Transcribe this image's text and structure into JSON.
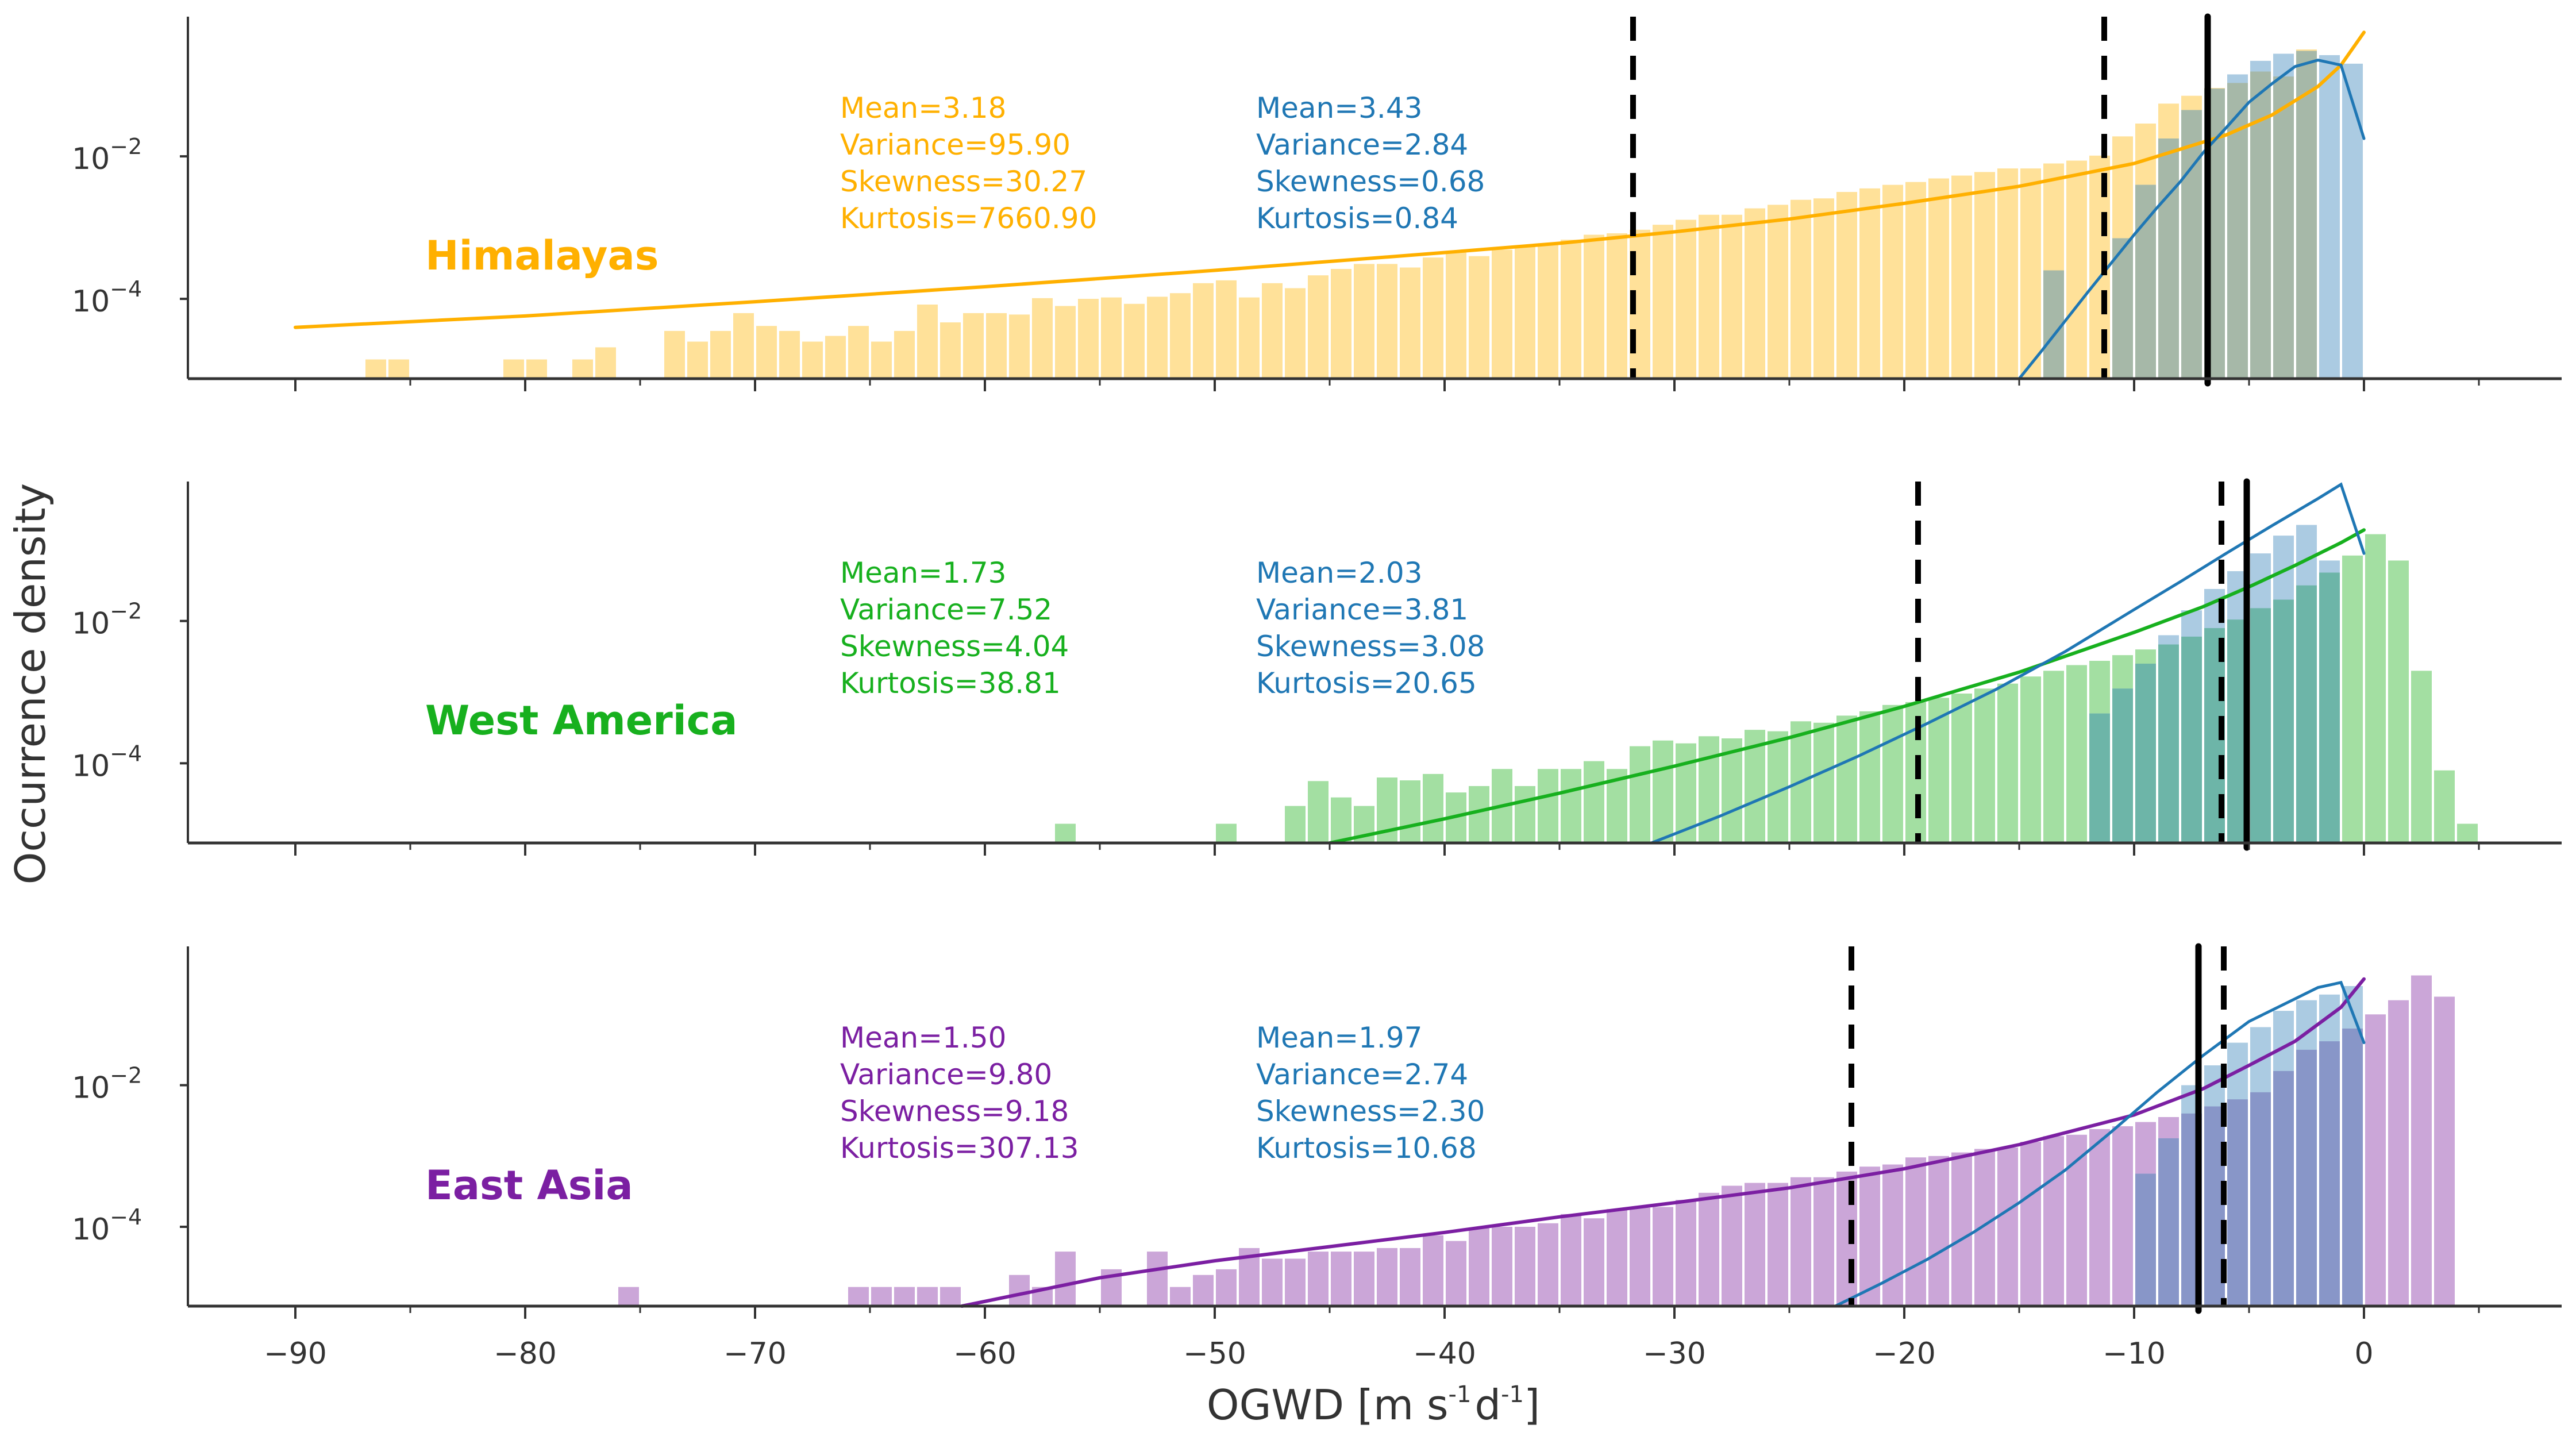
{
  "chart_data": {
    "type": "bar",
    "description": "Three stacked log-scale histograms of OGWD with fitted distribution curves",
    "xlabel": "OGWD [m s^-1 d^-1]",
    "xlabel_parts": {
      "main": "OGWD [m s",
      "sup1": "-1",
      "mid": "d",
      "sup2": "-1",
      "end": "]"
    },
    "ylabel": "Occurrence density",
    "xlim": [
      -94.7,
      8.7
    ],
    "ylim_log10": [
      -5.12,
      -0.04
    ],
    "yscale": "log",
    "x_ticks": [
      -90,
      -80,
      -70,
      -60,
      -50,
      -40,
      -30,
      -20,
      -10,
      0
    ],
    "x_tick_labels": [
      "−90",
      "−80",
      "−70",
      "−60",
      "−50",
      "−40",
      "−30",
      "−20",
      "−10",
      "0"
    ],
    "x_minor_ticks": [
      -85,
      -75,
      -65,
      -55,
      -45,
      -35,
      -25,
      -15,
      -5,
      5
    ],
    "y_ticks_log10": [
      -2,
      -4
    ],
    "y_tick_labels": [
      {
        "base": "10",
        "exp": "−2"
      },
      {
        "base": "10",
        "exp": "−4"
      }
    ],
    "bin_width": 1,
    "panels": [
      {
        "region": "Himalayas",
        "color": "#FFB000",
        "bar_color": "#FFE199",
        "blue_color": "#1F77B4",
        "blue_bar_color": "#A6C8E0",
        "overlap_color": "#A6B8A8",
        "stats_region": {
          "mean": "Mean=3.18",
          "variance": "Variance=95.90",
          "skewness": "Skewness=30.27",
          "kurtosis": "Kurtosis=7660.90"
        },
        "stats_blue": {
          "mean": "Mean=3.43",
          "variance": "Variance=2.84",
          "skewness": "Skewness=0.68",
          "kurtosis": "Kurtosis=0.84"
        },
        "dashed_lines": [
          -31.8,
          -11.3
        ],
        "solid_lines": [
          -6.8
        ],
        "region_bins_start": -87,
        "region_bins_log10": [
          -4.85,
          -4.85,
          null,
          null,
          null,
          null,
          -4.85,
          -4.85,
          null,
          -4.85,
          -4.68,
          null,
          null,
          -4.45,
          -4.6,
          -4.45,
          -4.2,
          -4.38,
          -4.45,
          -4.6,
          -4.52,
          -4.38,
          -4.6,
          -4.45,
          -4.08,
          -4.33,
          -4.2,
          -4.2,
          -4.22,
          -3.99,
          -4.1,
          -4.0,
          -3.98,
          -4.07,
          -3.97,
          -3.92,
          -3.78,
          -3.74,
          -3.98,
          -3.78,
          -3.85,
          -3.67,
          -3.58,
          -3.51,
          -3.51,
          -3.56,
          -3.42,
          -3.35,
          -3.4,
          -3.31,
          -3.26,
          -3.22,
          -3.17,
          -3.1,
          -3.08,
          -3.03,
          -2.96,
          -2.89,
          -2.82,
          -2.82,
          -2.73,
          -2.68,
          -2.61,
          -2.59,
          -2.5,
          -2.45,
          -2.4,
          -2.36,
          -2.31,
          -2.27,
          -2.22,
          -2.17,
          -2.17,
          -2.1,
          -2.06,
          -1.99,
          -1.72,
          -1.54,
          -1.26,
          -1.15,
          -1.04,
          -0.97,
          -0.81,
          -0.88,
          -0.5
        ],
        "blue_bins_start": -14,
        "blue_bins_log10": [
          -3.6,
          null,
          null,
          -3.15,
          -2.4,
          -1.75,
          -1.35,
          -1.05,
          -0.85,
          -0.66,
          -0.56,
          -0.52,
          -0.58,
          -0.7
        ],
        "region_fit": {
          "x": [
            -90,
            -80,
            -70,
            -60,
            -50,
            -40,
            -35,
            -30,
            -25,
            -20,
            -15,
            -10,
            -8,
            -6,
            -4,
            -2,
            -1,
            0
          ],
          "log10": [
            -4.4,
            -4.24,
            -4.04,
            -3.83,
            -3.6,
            -3.35,
            -3.22,
            -3.06,
            -2.88,
            -2.66,
            -2.42,
            -2.1,
            -1.9,
            -1.7,
            -1.42,
            -1.02,
            -0.72,
            -0.26
          ]
        },
        "blue_fit": {
          "x": [
            -15,
            -14,
            -13,
            -12,
            -11,
            -10,
            -9,
            -8,
            -7,
            -6,
            -5,
            -4,
            -3,
            -2,
            -1,
            0
          ],
          "log10": [
            -5.12,
            -4.72,
            -4.31,
            -3.9,
            -3.5,
            -3.1,
            -2.72,
            -2.36,
            -1.95,
            -1.6,
            -1.24,
            -0.98,
            -0.74,
            -0.65,
            -0.72,
            -1.75
          ]
        }
      },
      {
        "region": "West America",
        "color": "#17B01E",
        "bar_color": "#A3DFA2",
        "blue_color": "#1F77B4",
        "blue_bar_color": "#A6C8E0",
        "overlap_color": "#6DB5A8",
        "stats_region": {
          "mean": "Mean=1.73",
          "variance": "Variance=7.52",
          "skewness": "Skewness=4.04",
          "kurtosis": "Kurtosis=38.81"
        },
        "stats_blue": {
          "mean": "Mean=2.03",
          "variance": "Variance=3.81",
          "skewness": "Skewness=3.08",
          "kurtosis": "Kurtosis=20.65"
        },
        "dashed_lines": [
          -19.4,
          -6.2
        ],
        "solid_lines": [
          -5.1
        ],
        "region_bins_start": -57,
        "region_bins_log10": [
          -4.85,
          null,
          null,
          null,
          null,
          null,
          null,
          -4.85,
          null,
          null,
          -4.6,
          -4.25,
          -4.48,
          -4.6,
          -4.2,
          -4.24,
          -4.15,
          -4.41,
          -4.32,
          -4.08,
          -4.32,
          -4.08,
          -4.08,
          -3.97,
          -4.08,
          -3.76,
          -3.68,
          -3.72,
          -3.62,
          -3.65,
          -3.53,
          -3.55,
          -3.41,
          -3.43,
          -3.33,
          -3.27,
          -3.18,
          -3.14,
          -3.08,
          -3.02,
          -2.95,
          -2.88,
          -2.78,
          -2.7,
          -2.62,
          -2.56,
          -2.48,
          -2.4,
          -2.33,
          -2.22,
          -2.1,
          -1.98,
          -1.82,
          -1.7,
          -1.5,
          -1.32,
          -1.08,
          -0.78,
          -1.15,
          -2.7,
          -4.1,
          -4.85
        ],
        "blue_bins_start": -12,
        "blue_bins_log10": [
          -3.3,
          -2.95,
          -2.6,
          -2.2,
          -1.85,
          -1.55,
          -1.3,
          -1.05,
          -0.8,
          -0.65,
          -1.15
        ],
        "region_fit": {
          "x": [
            -45,
            -40,
            -35,
            -30,
            -25,
            -20,
            -15,
            -10,
            -7,
            -5,
            -3,
            -1,
            0
          ],
          "log10": [
            -5.12,
            -4.78,
            -4.42,
            -4.04,
            -3.64,
            -3.2,
            -2.72,
            -2.16,
            -1.8,
            -1.52,
            -1.22,
            -0.9,
            -0.72
          ]
        },
        "blue_fit": {
          "x": [
            -31,
            -28,
            -25,
            -22,
            -19,
            -16,
            -13,
            -10,
            -8,
            -6,
            -4,
            -2,
            -1,
            0
          ],
          "log10": [
            -5.12,
            -4.74,
            -4.33,
            -3.9,
            -3.44,
            -2.96,
            -2.43,
            -1.84,
            -1.45,
            -1.05,
            -0.66,
            -0.28,
            -0.08,
            -1.05
          ]
        }
      },
      {
        "region": "East Asia",
        "color": "#7B1FA2",
        "bar_color": "#CBA6D8",
        "blue_color": "#1F77B4",
        "blue_bar_color": "#A6C8E0",
        "overlap_color": "#8896C8",
        "stats_region": {
          "mean": "Mean=1.50",
          "variance": "Variance=9.80",
          "skewness": "Skewness=9.18",
          "kurtosis": "Kurtosis=307.13"
        },
        "stats_blue": {
          "mean": "Mean=1.97",
          "variance": "Variance=2.74",
          "skewness": "Skewness=2.30",
          "kurtosis": "Kurtosis=10.68"
        },
        "dashed_lines": [
          -22.3,
          -6.1
        ],
        "solid_lines": [
          -7.2
        ],
        "region_bins_start": -76,
        "region_bins_log10": [
          -4.85,
          null,
          null,
          null,
          null,
          null,
          null,
          null,
          null,
          null,
          -4.85,
          -4.85,
          -4.85,
          -4.85,
          -4.85,
          null,
          null,
          -4.68,
          -4.85,
          -4.35,
          null,
          -4.6,
          null,
          -4.35,
          -4.85,
          -4.68,
          -4.6,
          -4.3,
          -4.45,
          -4.45,
          -4.35,
          -4.35,
          -4.35,
          -4.3,
          -4.3,
          -4.12,
          -4.2,
          -4.02,
          -4.0,
          -4.0,
          -3.95,
          -3.82,
          -3.88,
          -3.75,
          -3.73,
          -3.72,
          -3.62,
          -3.52,
          -3.42,
          -3.38,
          -3.38,
          -3.3,
          -3.3,
          -3.22,
          -3.15,
          -3.12,
          -3.02,
          -3.0,
          -2.95,
          -2.9,
          -2.88,
          -2.8,
          -2.72,
          -2.7,
          -2.62,
          -2.58,
          -2.52,
          -2.45,
          -2.4,
          -2.3,
          -2.2,
          -2.1,
          -1.8,
          -1.5,
          -1.38,
          -1.2,
          -1.0,
          -0.8,
          -0.45,
          -0.75
        ],
        "blue_bins_start": -10,
        "blue_bins_log10": [
          -3.25,
          -2.75,
          -2.0,
          -1.72,
          -1.4,
          -1.18,
          -0.95,
          -0.8,
          -0.72,
          -0.6
        ],
        "region_fit": {
          "x": [
            -61,
            -55,
            -50,
            -45,
            -40,
            -35,
            -30,
            -25,
            -20,
            -15,
            -10,
            -7,
            -5,
            -3,
            -1,
            0
          ],
          "log10": [
            -5.12,
            -4.72,
            -4.48,
            -4.28,
            -4.08,
            -3.86,
            -3.66,
            -3.45,
            -3.18,
            -2.84,
            -2.42,
            -2.05,
            -1.72,
            -1.38,
            -0.9,
            -0.5
          ]
        },
        "blue_fit": {
          "x": [
            -23,
            -21,
            -19,
            -17,
            -15,
            -13,
            -11,
            -9,
            -7,
            -5,
            -3,
            -2,
            -1,
            0
          ],
          "log10": [
            -5.12,
            -4.8,
            -4.46,
            -4.08,
            -3.66,
            -3.2,
            -2.66,
            -2.1,
            -1.58,
            -1.1,
            -0.78,
            -0.62,
            -0.55,
            -1.4
          ]
        }
      }
    ]
  }
}
